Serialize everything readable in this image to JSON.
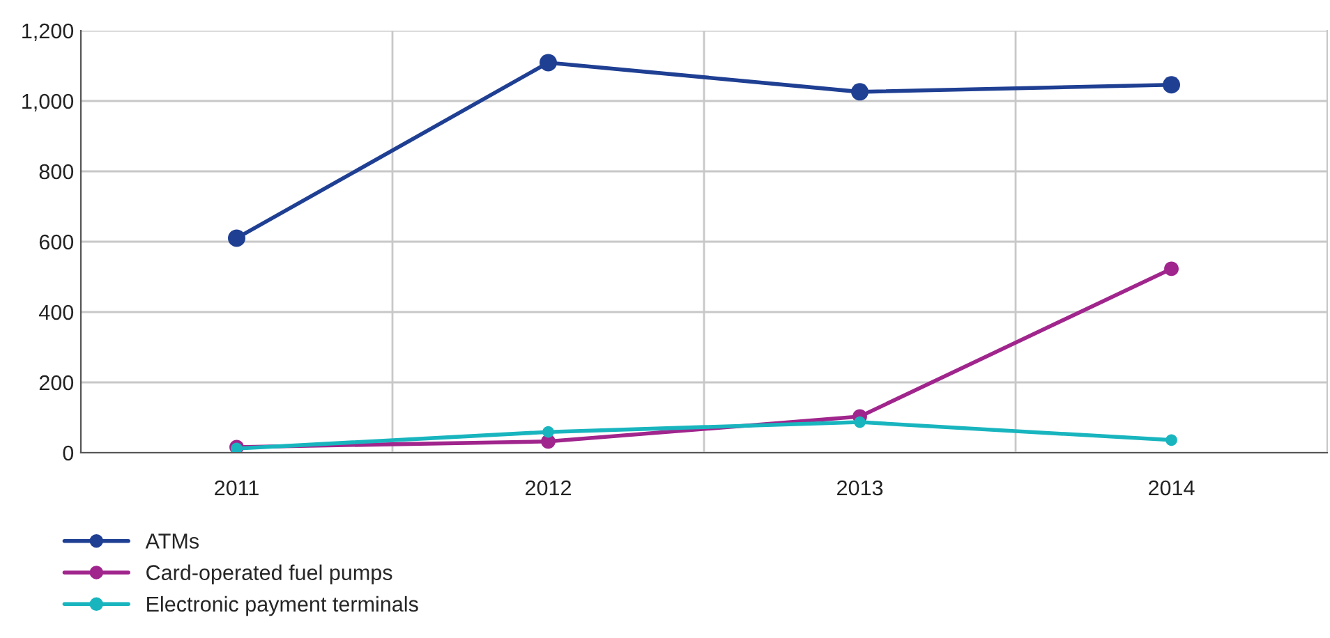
{
  "chart_data": {
    "type": "line",
    "categories": [
      "2011",
      "2012",
      "2013",
      "2014"
    ],
    "series": [
      {
        "name": "ATMs",
        "color": "#1f3f93",
        "values": [
          610,
          1109,
          1026,
          1046
        ]
      },
      {
        "name": "Card-operated fuel pumps",
        "color": "#a0258c",
        "values": [
          16,
          32,
          103,
          523
        ]
      },
      {
        "name": "Electronic payment terminals",
        "color": "#19b5bf",
        "values": [
          12,
          59,
          87,
          36
        ]
      }
    ],
    "ylim": [
      0,
      1200
    ],
    "yticks": [
      0,
      200,
      400,
      600,
      800,
      {
        "value": 1000,
        "label": "1,000"
      },
      {
        "value": 1200,
        "label": "1,200"
      }
    ],
    "grid": true,
    "legend": "bottom left",
    "marker": "circle",
    "line_style": "solid"
  }
}
